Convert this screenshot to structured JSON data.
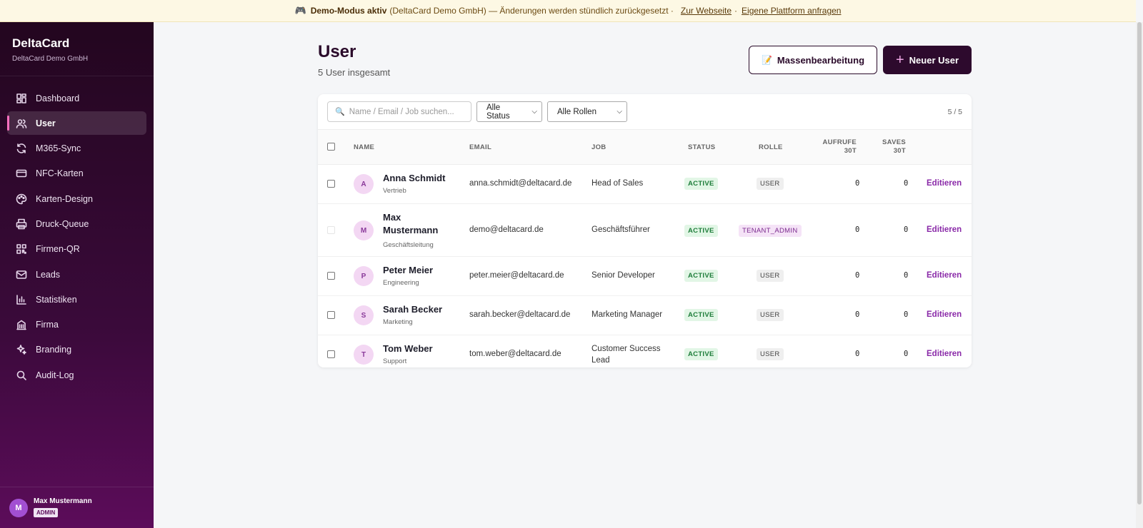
{
  "banner": {
    "icon": "gamepad-icon",
    "title": "Demo-Modus aktiv",
    "text": "(DeltaCard Demo GmbH) — Änderungen werden stündlich zurückgesetzt ·",
    "link1": "Zur Webseite",
    "sep": "·",
    "link2": "Eigene Plattform anfragen"
  },
  "sidebar": {
    "brand": "DeltaCard",
    "company": "DeltaCard Demo GmbH",
    "items": [
      {
        "label": "Dashboard",
        "icon": "dashboard-icon"
      },
      {
        "label": "User",
        "icon": "users-icon",
        "active": true
      },
      {
        "label": "M365-Sync",
        "icon": "sync-icon"
      },
      {
        "label": "NFC-Karten",
        "icon": "card-icon"
      },
      {
        "label": "Karten-Design",
        "icon": "palette-icon"
      },
      {
        "label": "Druck-Queue",
        "icon": "printer-icon"
      },
      {
        "label": "Firmen-QR",
        "icon": "qr-icon"
      },
      {
        "label": "Leads",
        "icon": "mail-icon"
      },
      {
        "label": "Statistiken",
        "icon": "chart-icon"
      },
      {
        "label": "Firma",
        "icon": "building-icon"
      },
      {
        "label": "Branding",
        "icon": "sparkle-icon"
      },
      {
        "label": "Audit-Log",
        "icon": "search-icon"
      }
    ],
    "user": {
      "initial": "M",
      "name": "Max Mustermann",
      "role": "ADMIN"
    }
  },
  "header": {
    "title": "User",
    "subtitle": "5 User insgesamt",
    "mass_edit_label": "Massenbearbeitung",
    "new_user_label": "Neuer User"
  },
  "toolbar": {
    "search_placeholder": "Name / Email / Job suchen...",
    "status_filter": "Alle Status",
    "role_filter": "Alle Rollen",
    "count": "5 / 5"
  },
  "table": {
    "columns": {
      "name": "NAME",
      "email": "EMAIL",
      "job": "JOB",
      "status": "STATUS",
      "role": "ROLLE",
      "calls_1": "AUFRUFE",
      "calls_2": "30T",
      "saves_1": "SAVES",
      "saves_2": "30T"
    },
    "rows": [
      {
        "initial": "A",
        "name": "Anna Schmidt",
        "dept": "Vertrieb",
        "email": "anna.schmidt@deltacard.de",
        "job": "Head of Sales",
        "status": "ACTIVE",
        "role": "USER",
        "calls": "0",
        "saves": "0",
        "action": "Editieren"
      },
      {
        "initial": "M",
        "name": "Max Mustermann",
        "dept": "Geschäftsleitung",
        "email": "demo@deltacard.de",
        "job": "Geschäftsführer",
        "status": "ACTIVE",
        "role": "TENANT_ADMIN",
        "calls": "0",
        "saves": "0",
        "action": "Editieren"
      },
      {
        "initial": "P",
        "name": "Peter Meier",
        "dept": "Engineering",
        "email": "peter.meier@deltacard.de",
        "job": "Senior Developer",
        "status": "ACTIVE",
        "role": "USER",
        "calls": "0",
        "saves": "0",
        "action": "Editieren"
      },
      {
        "initial": "S",
        "name": "Sarah Becker",
        "dept": "Marketing",
        "email": "sarah.becker@deltacard.de",
        "job": "Marketing Manager",
        "status": "ACTIVE",
        "role": "USER",
        "calls": "0",
        "saves": "0",
        "action": "Editieren"
      },
      {
        "initial": "T",
        "name": "Tom Weber",
        "dept": "Support",
        "email": "tom.weber@deltacard.de",
        "job": "Customer Success Lead",
        "status": "ACTIVE",
        "role": "USER",
        "calls": "0",
        "saves": "0",
        "action": "Editieren"
      }
    ]
  }
}
